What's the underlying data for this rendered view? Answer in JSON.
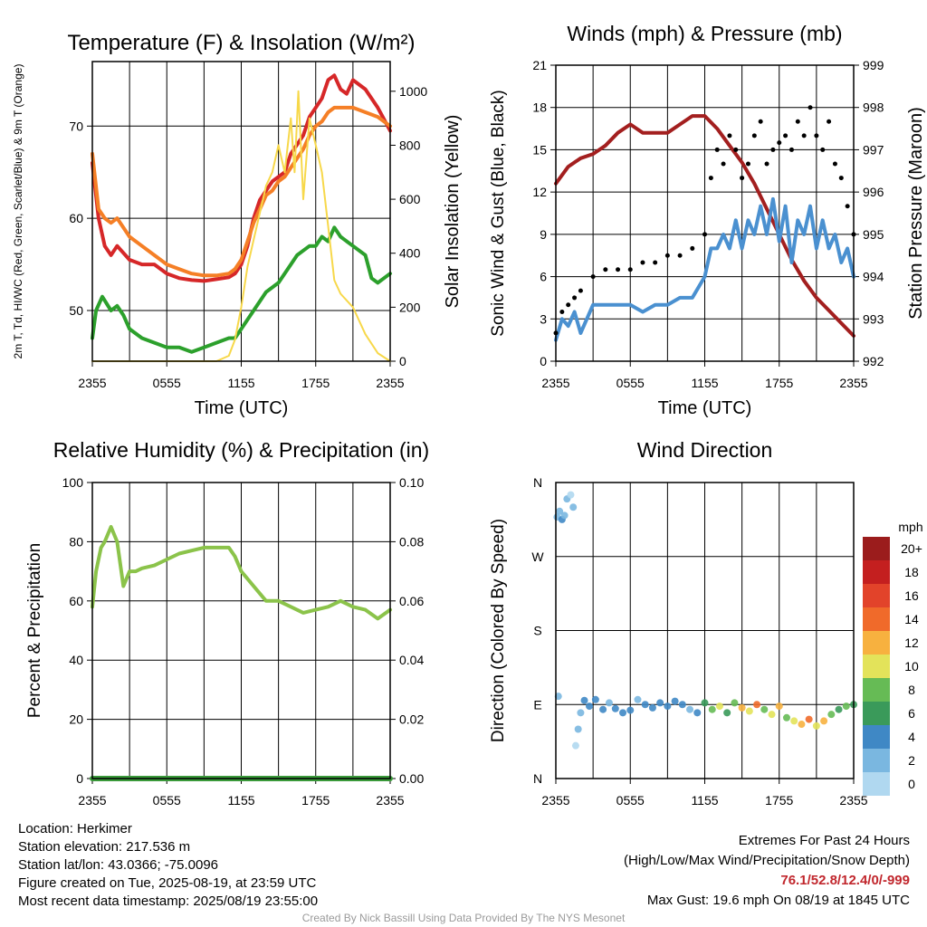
{
  "chart_data": [
    {
      "id": "temperature",
      "type": "line",
      "title": "Temperature (F) & Insolation (W/m²)",
      "xlabel": "Time (UTC)",
      "ylabel": "2m T, Td, HI/WC (Red, Green, Scarlet/Blue) & 9m T (Orange)",
      "ylabel_right": "Solar Insolation (Yellow)",
      "x_ticks": [
        "2355",
        "0555",
        "1155",
        "1755",
        "2355"
      ],
      "y_ticks": [
        "50",
        "60",
        "70"
      ],
      "y2_ticks": [
        "0",
        "200",
        "400",
        "600",
        "800",
        "1000"
      ],
      "ylim": [
        44.5,
        77
      ],
      "y2lim": [
        0,
        1110
      ],
      "grid": true,
      "series": [
        {
          "name": "2m T",
          "color": "#d62728",
          "hours": [
            0,
            0.5,
            1,
            1.5,
            2,
            3,
            4,
            5,
            6,
            7,
            8,
            9,
            10,
            11,
            11.5,
            12,
            12.5,
            13,
            13.5,
            14,
            14.5,
            15,
            15.5,
            16,
            16.5,
            17,
            17.5,
            18,
            18.5,
            19,
            19.5,
            20,
            20.5,
            21,
            22,
            23,
            24
          ],
          "values": [
            66,
            60,
            57,
            56,
            57,
            55.5,
            55,
            55,
            54,
            53.5,
            53.3,
            53.2,
            53.4,
            53.6,
            54,
            55,
            57,
            60,
            62,
            63,
            64,
            64.5,
            65,
            67,
            68,
            69,
            71,
            72,
            73,
            75,
            75.5,
            74,
            73.5,
            75,
            74,
            72,
            69.5
          ]
        },
        {
          "name": "9m T",
          "color": "#f57f26",
          "hours": [
            0,
            0.5,
            1,
            1.5,
            2,
            3,
            4,
            5,
            6,
            7,
            8,
            9,
            10,
            11,
            11.5,
            12,
            12.5,
            13,
            13.5,
            14,
            14.5,
            15,
            15.5,
            16,
            16.5,
            17,
            17.5,
            18,
            18.5,
            19,
            19.5,
            20,
            21,
            22,
            23,
            24
          ],
          "values": [
            67,
            61,
            60,
            59.5,
            60,
            58,
            57,
            56,
            55,
            54.5,
            54,
            53.8,
            53.8,
            54,
            54.5,
            55.5,
            57.5,
            59.5,
            61,
            62.5,
            63,
            64,
            64.5,
            65.5,
            66.5,
            67.5,
            69,
            70,
            70.5,
            71.5,
            72,
            72,
            72,
            71.5,
            71,
            70
          ]
        },
        {
          "name": "Td",
          "color": "#2ca02c",
          "hours": [
            0,
            0.3,
            0.8,
            1.5,
            2,
            2.5,
            3,
            4,
            5,
            6,
            7,
            8,
            9,
            10,
            11,
            11.5,
            12,
            13,
            14,
            15,
            16,
            16.5,
            17,
            17.5,
            18,
            18.5,
            19,
            19.5,
            20,
            21,
            22,
            22.5,
            23,
            23.5,
            24
          ],
          "values": [
            47,
            50,
            51.5,
            50,
            50.5,
            49.5,
            48,
            47,
            46.5,
            46,
            46,
            45.5,
            46,
            46.5,
            47,
            47,
            48,
            50,
            52,
            53,
            55,
            56,
            56.5,
            57,
            57,
            58,
            57.5,
            59,
            58,
            57,
            56,
            53.5,
            53,
            53.5,
            54
          ]
        },
        {
          "name": "Solar Insolation",
          "color": "#f7d84a",
          "axis": "right",
          "hours": [
            0,
            10,
            11,
            11.5,
            12,
            12.5,
            13,
            13.5,
            14,
            14.5,
            15,
            15.5,
            16,
            16.3,
            16.6,
            17,
            17.5,
            18,
            18.5,
            19,
            19.5,
            20,
            21,
            22,
            23,
            24
          ],
          "values": [
            0,
            0,
            20,
            80,
            200,
            350,
            450,
            550,
            650,
            700,
            800,
            700,
            900,
            700,
            1000,
            600,
            900,
            800,
            700,
            500,
            300,
            250,
            200,
            100,
            30,
            0
          ]
        }
      ]
    },
    {
      "id": "winds",
      "type": "line",
      "title": "Winds (mph) & Pressure (mb)",
      "xlabel": "Time (UTC)",
      "ylabel": "Sonic Wind & Gust (Blue, Black)",
      "ylabel_right": "Station Pressure (Maroon)",
      "x_ticks": [
        "2355",
        "0555",
        "1155",
        "1755",
        "2355"
      ],
      "y_ticks": [
        "0",
        "3",
        "6",
        "9",
        "12",
        "15",
        "18",
        "21"
      ],
      "y2_ticks": [
        "992",
        "993",
        "994",
        "995",
        "996",
        "997",
        "998",
        "999"
      ],
      "ylim": [
        0,
        21
      ],
      "y2lim": [
        992,
        999
      ],
      "grid": true,
      "series": [
        {
          "name": "Pressure",
          "color": "#a31f1f",
          "axis": "right",
          "hours": [
            0,
            1,
            2,
            3,
            4,
            5,
            6,
            7,
            8,
            9,
            10,
            11,
            12,
            13,
            14,
            15,
            16,
            17,
            18,
            19,
            20,
            21,
            22,
            23,
            24
          ],
          "values": [
            996.2,
            996.6,
            996.8,
            996.9,
            997.1,
            997.4,
            997.6,
            997.4,
            997.4,
            997.4,
            997.6,
            997.8,
            997.8,
            997.5,
            997.1,
            996.7,
            996.2,
            995.6,
            995.0,
            994.4,
            993.9,
            993.5,
            993.2,
            992.9,
            992.6
          ]
        },
        {
          "name": "Sonic Wind",
          "color": "#4a90d0",
          "hours": [
            0,
            0.5,
            1,
            1.5,
            2,
            3,
            4,
            5,
            6,
            7,
            8,
            9,
            10,
            11,
            12,
            12.5,
            13,
            13.5,
            14,
            14.5,
            15,
            15.5,
            16,
            16.5,
            17,
            17.5,
            18,
            18.5,
            19,
            19.5,
            20,
            20.5,
            21,
            21.5,
            22,
            22.5,
            23,
            23.5,
            24
          ],
          "values": [
            1.5,
            3,
            2.5,
            3.5,
            2,
            4,
            4,
            4,
            4,
            3.5,
            4,
            4,
            4.5,
            4.5,
            6,
            8,
            8,
            9,
            8,
            10,
            8,
            10,
            9,
            11,
            9,
            11.5,
            8.5,
            11,
            7,
            10,
            9,
            11,
            8,
            10,
            8,
            9,
            7,
            8,
            6
          ]
        },
        {
          "name": "Gust",
          "color": "#000000",
          "hours": [
            0,
            0.5,
            1,
            1.5,
            2,
            3,
            4,
            5,
            6,
            7,
            8,
            9,
            10,
            11,
            12,
            12.5,
            13,
            13.5,
            14,
            14.5,
            15,
            15.5,
            16,
            16.5,
            17,
            17.5,
            18,
            18.5,
            19,
            19.5,
            20,
            20.5,
            21,
            21.5,
            22,
            22.5,
            23,
            23.5,
            24
          ],
          "values": [
            2,
            3.5,
            4,
            4.5,
            5,
            6,
            6.5,
            6.5,
            6.5,
            7,
            7,
            7.5,
            7.5,
            8,
            9,
            13,
            15,
            14,
            16,
            15,
            13,
            14,
            16,
            17,
            14,
            15,
            15.5,
            16,
            15,
            17,
            16,
            18,
            16,
            15,
            17,
            14,
            13,
            11,
            9
          ]
        }
      ]
    },
    {
      "id": "humidity",
      "type": "line",
      "title": "Relative Humidity (%) & Precipitation (in)",
      "xlabel": "",
      "ylabel": "Percent & Precipitation",
      "x_ticks": [
        "2355",
        "0555",
        "1155",
        "1755",
        "2355"
      ],
      "y_ticks": [
        "0",
        "20",
        "40",
        "60",
        "80",
        "100"
      ],
      "y2_ticks": [
        "0.00",
        "0.02",
        "0.04",
        "0.06",
        "0.08",
        "0.10"
      ],
      "ylim": [
        0,
        100
      ],
      "y2lim": [
        0,
        0.1
      ],
      "grid": true,
      "series": [
        {
          "name": "Relative Humidity",
          "color": "#8bc34a",
          "hours": [
            0,
            0.3,
            0.7,
            1,
            1.5,
            2,
            2.5,
            3,
            3.5,
            4,
            5,
            6,
            7,
            8,
            9,
            10,
            11,
            11.5,
            12,
            13,
            14,
            15,
            16,
            17,
            18,
            19,
            20,
            21,
            22,
            23,
            24
          ],
          "values": [
            58,
            70,
            78,
            80,
            85,
            80,
            65,
            70,
            70,
            71,
            72,
            74,
            76,
            77,
            78,
            78,
            78,
            75,
            70,
            65,
            60,
            60,
            58,
            56,
            57,
            58,
            60,
            58,
            57,
            54,
            57
          ]
        },
        {
          "name": "Precipitation",
          "color": "#3a9a3a",
          "hours": [
            0,
            24
          ],
          "values": [
            0,
            0
          ]
        }
      ]
    },
    {
      "id": "wind-direction",
      "type": "scatter",
      "title": "Wind Direction",
      "ylabel": "Direction (Colored By Speed)",
      "x_ticks": [
        "2355",
        "0555",
        "1155",
        "1755",
        "2355"
      ],
      "y_ticks": [
        "N",
        "E",
        "S",
        "W",
        "N"
      ],
      "ylim": [
        0,
        360
      ],
      "grid": true,
      "colorbar_title": "mph",
      "colorbar_labels": [
        "20+",
        "18",
        "16",
        "14",
        "12",
        "10",
        "8",
        "6",
        "4",
        "2",
        "0"
      ],
      "colorbar_colors": [
        "#b0d8f0",
        "#7ab7e0",
        "#3f88c5",
        "#3a9a5a",
        "#66bb55",
        "#e3e35a",
        "#f7b13f",
        "#f06a2a",
        "#e2432a",
        "#c41f1f",
        "#9b1c1c"
      ],
      "points": [
        {
          "h": 0.1,
          "deg": 318,
          "mph": 2
        },
        {
          "h": 0.3,
          "deg": 325,
          "mph": 3
        },
        {
          "h": 0.5,
          "deg": 315,
          "mph": 4
        },
        {
          "h": 0.7,
          "deg": 320,
          "mph": 3
        },
        {
          "h": 0.9,
          "deg": 340,
          "mph": 2
        },
        {
          "h": 1.2,
          "deg": 345,
          "mph": 1
        },
        {
          "h": 1.4,
          "deg": 330,
          "mph": 2
        },
        {
          "h": 0.2,
          "deg": 100,
          "mph": 3
        },
        {
          "h": 1.6,
          "deg": 40,
          "mph": 1
        },
        {
          "h": 1.8,
          "deg": 60,
          "mph": 2
        },
        {
          "h": 2.0,
          "deg": 80,
          "mph": 3
        },
        {
          "h": 2.3,
          "deg": 95,
          "mph": 4
        },
        {
          "h": 2.7,
          "deg": 88,
          "mph": 4
        },
        {
          "h": 3.2,
          "deg": 96,
          "mph": 4
        },
        {
          "h": 3.8,
          "deg": 84,
          "mph": 4
        },
        {
          "h": 4.3,
          "deg": 92,
          "mph": 3
        },
        {
          "h": 4.8,
          "deg": 85,
          "mph": 4
        },
        {
          "h": 5.4,
          "deg": 80,
          "mph": 4
        },
        {
          "h": 6.0,
          "deg": 83,
          "mph": 4
        },
        {
          "h": 6.6,
          "deg": 96,
          "mph": 3
        },
        {
          "h": 7.2,
          "deg": 90,
          "mph": 4
        },
        {
          "h": 7.8,
          "deg": 86,
          "mph": 4
        },
        {
          "h": 8.4,
          "deg": 92,
          "mph": 4
        },
        {
          "h": 9.0,
          "deg": 88,
          "mph": 4
        },
        {
          "h": 9.6,
          "deg": 94,
          "mph": 4
        },
        {
          "h": 10.2,
          "deg": 90,
          "mph": 4
        },
        {
          "h": 10.8,
          "deg": 84,
          "mph": 3
        },
        {
          "h": 11.4,
          "deg": 80,
          "mph": 4
        },
        {
          "h": 12.0,
          "deg": 92,
          "mph": 6
        },
        {
          "h": 12.6,
          "deg": 84,
          "mph": 8
        },
        {
          "h": 13.2,
          "deg": 88,
          "mph": 10
        },
        {
          "h": 13.8,
          "deg": 80,
          "mph": 6
        },
        {
          "h": 14.4,
          "deg": 92,
          "mph": 8
        },
        {
          "h": 15.0,
          "deg": 86,
          "mph": 12
        },
        {
          "h": 15.6,
          "deg": 82,
          "mph": 10
        },
        {
          "h": 16.2,
          "deg": 90,
          "mph": 14
        },
        {
          "h": 16.8,
          "deg": 84,
          "mph": 8
        },
        {
          "h": 17.4,
          "deg": 78,
          "mph": 10
        },
        {
          "h": 18.0,
          "deg": 88,
          "mph": 12
        },
        {
          "h": 18.6,
          "deg": 74,
          "mph": 8
        },
        {
          "h": 19.2,
          "deg": 70,
          "mph": 10
        },
        {
          "h": 19.8,
          "deg": 66,
          "mph": 12
        },
        {
          "h": 20.4,
          "deg": 72,
          "mph": 14
        },
        {
          "h": 21.0,
          "deg": 64,
          "mph": 10
        },
        {
          "h": 21.6,
          "deg": 70,
          "mph": 12
        },
        {
          "h": 22.2,
          "deg": 78,
          "mph": 8
        },
        {
          "h": 22.8,
          "deg": 84,
          "mph": 6
        },
        {
          "h": 23.4,
          "deg": 88,
          "mph": 8
        },
        {
          "h": 24.0,
          "deg": 90,
          "mph": 6
        }
      ]
    }
  ],
  "footer": {
    "location": "Location: Herkimer",
    "elevation": "Station elevation: 217.536 m",
    "latlon": "Station lat/lon: 43.0366; -75.0096",
    "created": "Figure created on Tue, 2025-08-19, at 23:59 UTC",
    "recent": "Most recent data timestamp: 2025/08/19 23:55:00",
    "extremes_title": "Extremes For Past 24 Hours",
    "extremes_legend": "(High/Low/Max Wind/Precipitation/Snow Depth)",
    "extremes_values": "76.1/52.8/12.4/0/-999",
    "max_gust": "Max Gust: 19.6 mph On 08/19 at 1845 UTC",
    "credit": "Created By Nick Bassill Using Data Provided By The NYS Mesonet"
  }
}
